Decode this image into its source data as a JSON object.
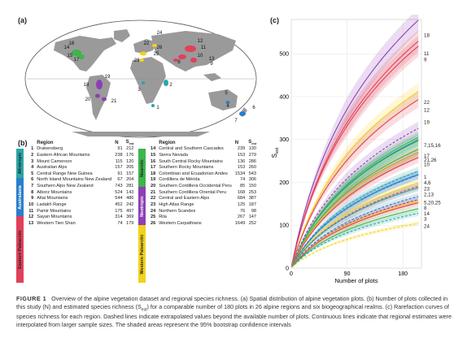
{
  "panels": {
    "a": "(a)",
    "b": "(b)",
    "c": "(c)"
  },
  "table": {
    "headers": {
      "num": "",
      "region": "Region",
      "n": "N",
      "sest": "S"
    },
    "sest_sub": "est",
    "left": [
      {
        "num": "1",
        "region": "Drakensberg",
        "n": "91",
        "sest": "212",
        "color": "#29a6a6"
      },
      {
        "num": "2",
        "region": "Eastern African Mountains",
        "n": "238",
        "sest": "176",
        "color": "#29a6a6"
      },
      {
        "num": "3",
        "region": "Mount Cameroon",
        "n": "115",
        "sest": "120",
        "color": "#29a6a6"
      },
      {
        "num": "4",
        "region": "Australian Alps",
        "n": "157",
        "sest": "205",
        "color": "#2a7fc9"
      },
      {
        "num": "5",
        "region": "Central Range New Guinea",
        "n": "91",
        "sest": "157",
        "color": "#2a7fc9"
      },
      {
        "num": "6",
        "region": "North Island Mountains New Zealand",
        "n": "67",
        "sest": "204",
        "color": "#2a7fc9"
      },
      {
        "num": "7",
        "region": "Southern Alps New Zealand",
        "n": "743",
        "sest": "281",
        "color": "#2a7fc9"
      },
      {
        "num": "8",
        "region": "Alborz Mountains",
        "n": "524",
        "sest": "143",
        "color": "#e0405a"
      },
      {
        "num": "9",
        "region": "Altai Mountains",
        "n": "544",
        "sest": "486",
        "color": "#e0405a"
      },
      {
        "num": "10",
        "region": "Ladakh Range",
        "n": "452",
        "sest": "242",
        "color": "#e0405a"
      },
      {
        "num": "11",
        "region": "Pamir Mountains",
        "n": "175",
        "sest": "497",
        "color": "#e0405a"
      },
      {
        "num": "12",
        "region": "Sayan Mountains",
        "n": "314",
        "sest": "369",
        "color": "#e0405a"
      },
      {
        "num": "13",
        "region": "Western Tien Shan",
        "n": "74",
        "sest": "179",
        "color": "#e0405a"
      }
    ],
    "right": [
      {
        "num": "14",
        "region": "Central and Southern Cascades",
        "n": "239",
        "sest": "130",
        "color": "#3db54a"
      },
      {
        "num": "15",
        "region": "Sierra Nevada",
        "n": "153",
        "sest": "279",
        "color": "#3db54a"
      },
      {
        "num": "16",
        "region": "South Central Rocky Mountains",
        "n": "136",
        "sest": "286",
        "color": "#3db54a"
      },
      {
        "num": "17",
        "region": "Southern Rocky Mountains",
        "n": "153",
        "sest": "260",
        "color": "#3db54a"
      },
      {
        "num": "18",
        "region": "Colombian and Ecuadorian Andes",
        "n": "1534",
        "sest": "543",
        "color": "#8e3fb5"
      },
      {
        "num": "19",
        "region": "Cordillera de Mérida",
        "n": "74",
        "sest": "306",
        "color": "#8e3fb5"
      },
      {
        "num": "20",
        "region": "Southern Cordillera Occidental Peru",
        "n": "85",
        "sest": "150",
        "color": "#8e3fb5"
      },
      {
        "num": "21",
        "region": "Southern Cordillera Oriental Peru",
        "n": "168",
        "sest": "253",
        "color": "#8e3fb5"
      },
      {
        "num": "22",
        "region": "Central and Eastern Alps",
        "n": "684",
        "sest": "387",
        "color": "#f2d21b"
      },
      {
        "num": "23",
        "region": "High Atlas Range",
        "n": "125",
        "sest": "187",
        "color": "#f2d21b"
      },
      {
        "num": "24",
        "region": "Northern Scandes",
        "n": "76",
        "sest": "98",
        "color": "#f2d21b"
      },
      {
        "num": "25",
        "region": "Rila",
        "n": "267",
        "sest": "147",
        "color": "#f2d21b"
      },
      {
        "num": "26",
        "region": "Western Carpathians",
        "n": "1649",
        "sest": "252",
        "color": "#f2d21b"
      }
    ],
    "realms": {
      "afrotropic": {
        "label": "Afrotropic",
        "color": "#29a6a6"
      },
      "australasia": {
        "label": "Australasia",
        "color": "#2a7fc9"
      },
      "eastern_palearctic": {
        "label": "Eastern Palearctic",
        "color": "#e0405a"
      },
      "nearctic": {
        "label": "Nearctic",
        "color": "#3db54a"
      },
      "neotropic": {
        "label": "Neotropic",
        "color": "#8e3fb5"
      },
      "western_palearctic": {
        "label": "Western Palearctic",
        "color": "#f2d21b"
      }
    }
  },
  "map": {
    "labels": [
      {
        "text": "14",
        "color": "#3db54a"
      },
      {
        "text": "16",
        "color": "#3db54a"
      },
      {
        "text": "15",
        "color": "#3db54a"
      },
      {
        "text": "17",
        "color": "#3db54a"
      },
      {
        "text": "24",
        "color": "#f2d21b"
      },
      {
        "text": "22",
        "color": "#f2d21b"
      },
      {
        "text": "26",
        "color": "#f2d21b"
      },
      {
        "text": "25",
        "color": "#f2d21b"
      },
      {
        "text": "23",
        "color": "#f2d21b"
      },
      {
        "text": "12",
        "color": "#e0405a"
      },
      {
        "text": "11",
        "color": "#e0405a"
      },
      {
        "text": "8",
        "color": "#e0405a"
      },
      {
        "text": "10",
        "color": "#e0405a"
      },
      {
        "text": "13",
        "color": "#e0405a"
      },
      {
        "text": "9",
        "color": "#e0405a"
      },
      {
        "text": "19",
        "color": "#8e3fb5"
      },
      {
        "text": "18",
        "color": "#8e3fb5"
      },
      {
        "text": "20",
        "color": "#8e3fb5"
      },
      {
        "text": "21",
        "color": "#8e3fb5"
      },
      {
        "text": "3",
        "color": "#29a6a6"
      },
      {
        "text": "2",
        "color": "#29a6a6"
      },
      {
        "text": "1",
        "color": "#29a6a6"
      },
      {
        "text": "5",
        "color": "#2a7fc9"
      },
      {
        "text": "4",
        "color": "#2a7fc9"
      },
      {
        "text": "7",
        "color": "#2a7fc9"
      },
      {
        "text": "6",
        "color": "#2a7fc9"
      }
    ]
  },
  "chart_data": {
    "type": "line",
    "xlabel": "Number of plots",
    "ylabel": "S",
    "ylabel_sub": "est",
    "xlim": [
      0,
      210
    ],
    "ylim": [
      0,
      580
    ],
    "xticks": [
      0,
      90,
      180
    ],
    "yticks": [
      0,
      100,
      200,
      300,
      400,
      500
    ],
    "curves": [
      {
        "label": "18",
        "end": 543,
        "color": "#8e3fb5"
      },
      {
        "label": "11",
        "end": 497,
        "color": "#e0405a"
      },
      {
        "label": "9",
        "end": 486,
        "color": "#e0405a"
      },
      {
        "label": "22",
        "end": 387,
        "color": "#f2d21b"
      },
      {
        "label": "12",
        "end": 369,
        "color": "#e0405a"
      },
      {
        "label": "19",
        "end": 306,
        "color": "#8e3fb5",
        "dashed": true
      },
      {
        "label": "16",
        "end": 286,
        "color": "#3db54a"
      },
      {
        "label": "7",
        "end": 281,
        "color": "#2a7fc9"
      },
      {
        "label": "15",
        "end": 279,
        "color": "#3db54a"
      },
      {
        "label": "17",
        "end": 260,
        "color": "#3db54a"
      },
      {
        "label": "21",
        "end": 253,
        "color": "#8e3fb5"
      },
      {
        "label": "26",
        "end": 252,
        "color": "#f2d21b"
      },
      {
        "label": "10",
        "end": 242,
        "color": "#e0405a"
      },
      {
        "label": "1",
        "end": 212,
        "color": "#29a6a6",
        "dashed": true
      },
      {
        "label": "4",
        "end": 205,
        "color": "#2a7fc9"
      },
      {
        "label": "6",
        "end": 204,
        "color": "#2a7fc9",
        "dashed": true
      },
      {
        "label": "23",
        "end": 187,
        "color": "#f2d21b"
      },
      {
        "label": "13",
        "end": 179,
        "color": "#e0405a",
        "dashed": true
      },
      {
        "label": "2",
        "end": 176,
        "color": "#29a6a6"
      },
      {
        "label": "5",
        "end": 157,
        "color": "#2a7fc9",
        "dashed": true
      },
      {
        "label": "20",
        "end": 150,
        "color": "#8e3fb5",
        "dashed": true
      },
      {
        "label": "25",
        "end": 147,
        "color": "#f2d21b"
      },
      {
        "label": "8",
        "end": 143,
        "color": "#e0405a"
      },
      {
        "label": "14",
        "end": 130,
        "color": "#3db54a"
      },
      {
        "label": "3",
        "end": 120,
        "color": "#29a6a6",
        "dashed": true
      },
      {
        "label": "24",
        "end": 98,
        "color": "#f2d21b",
        "dashed": true
      }
    ],
    "end_labels": [
      {
        "text": "18",
        "y": 543
      },
      {
        "text": "11",
        "y": 500
      },
      {
        "text": "9",
        "y": 486
      },
      {
        "text": "22",
        "y": 387
      },
      {
        "text": "12",
        "y": 369
      },
      {
        "text": "19",
        "y": 340
      },
      {
        "text": "7,15,16",
        "y": 286
      },
      {
        "text": "17",
        "y": 262
      },
      {
        "text": "21,26",
        "y": 252
      },
      {
        "text": "10",
        "y": 242
      },
      {
        "text": "1",
        "y": 212
      },
      {
        "text": "4,6",
        "y": 199
      },
      {
        "text": "23",
        "y": 185
      },
      {
        "text": "2,13",
        "y": 172
      },
      {
        "text": "5,20,25",
        "y": 153
      },
      {
        "text": "8",
        "y": 140
      },
      {
        "text": "14",
        "y": 127
      },
      {
        "text": "3",
        "y": 115
      },
      {
        "text": "24",
        "y": 98
      }
    ]
  },
  "caption": {
    "figure": "FIGURE 1",
    "text_1": "Overview of the alpine vegetation dataset and regional species richness. (a) Spatial distribution of alpine vegetation plots. (b) Number of plots collected in this study (N) and estimated species richness (S",
    "sub": "est",
    "text_2": ") for a comparable number of 180 plots in 26 alpine regions and six biogeographical realms. (c) Rarefaction curves of species richness for each region. Dashed lines indicate extrapolated values beyond the available number of plots. Continuous lines indicate that regional estimates were interpolated from larger sample sizes. The shaded areas represent the 95% bootstrap confidence intervals"
  }
}
